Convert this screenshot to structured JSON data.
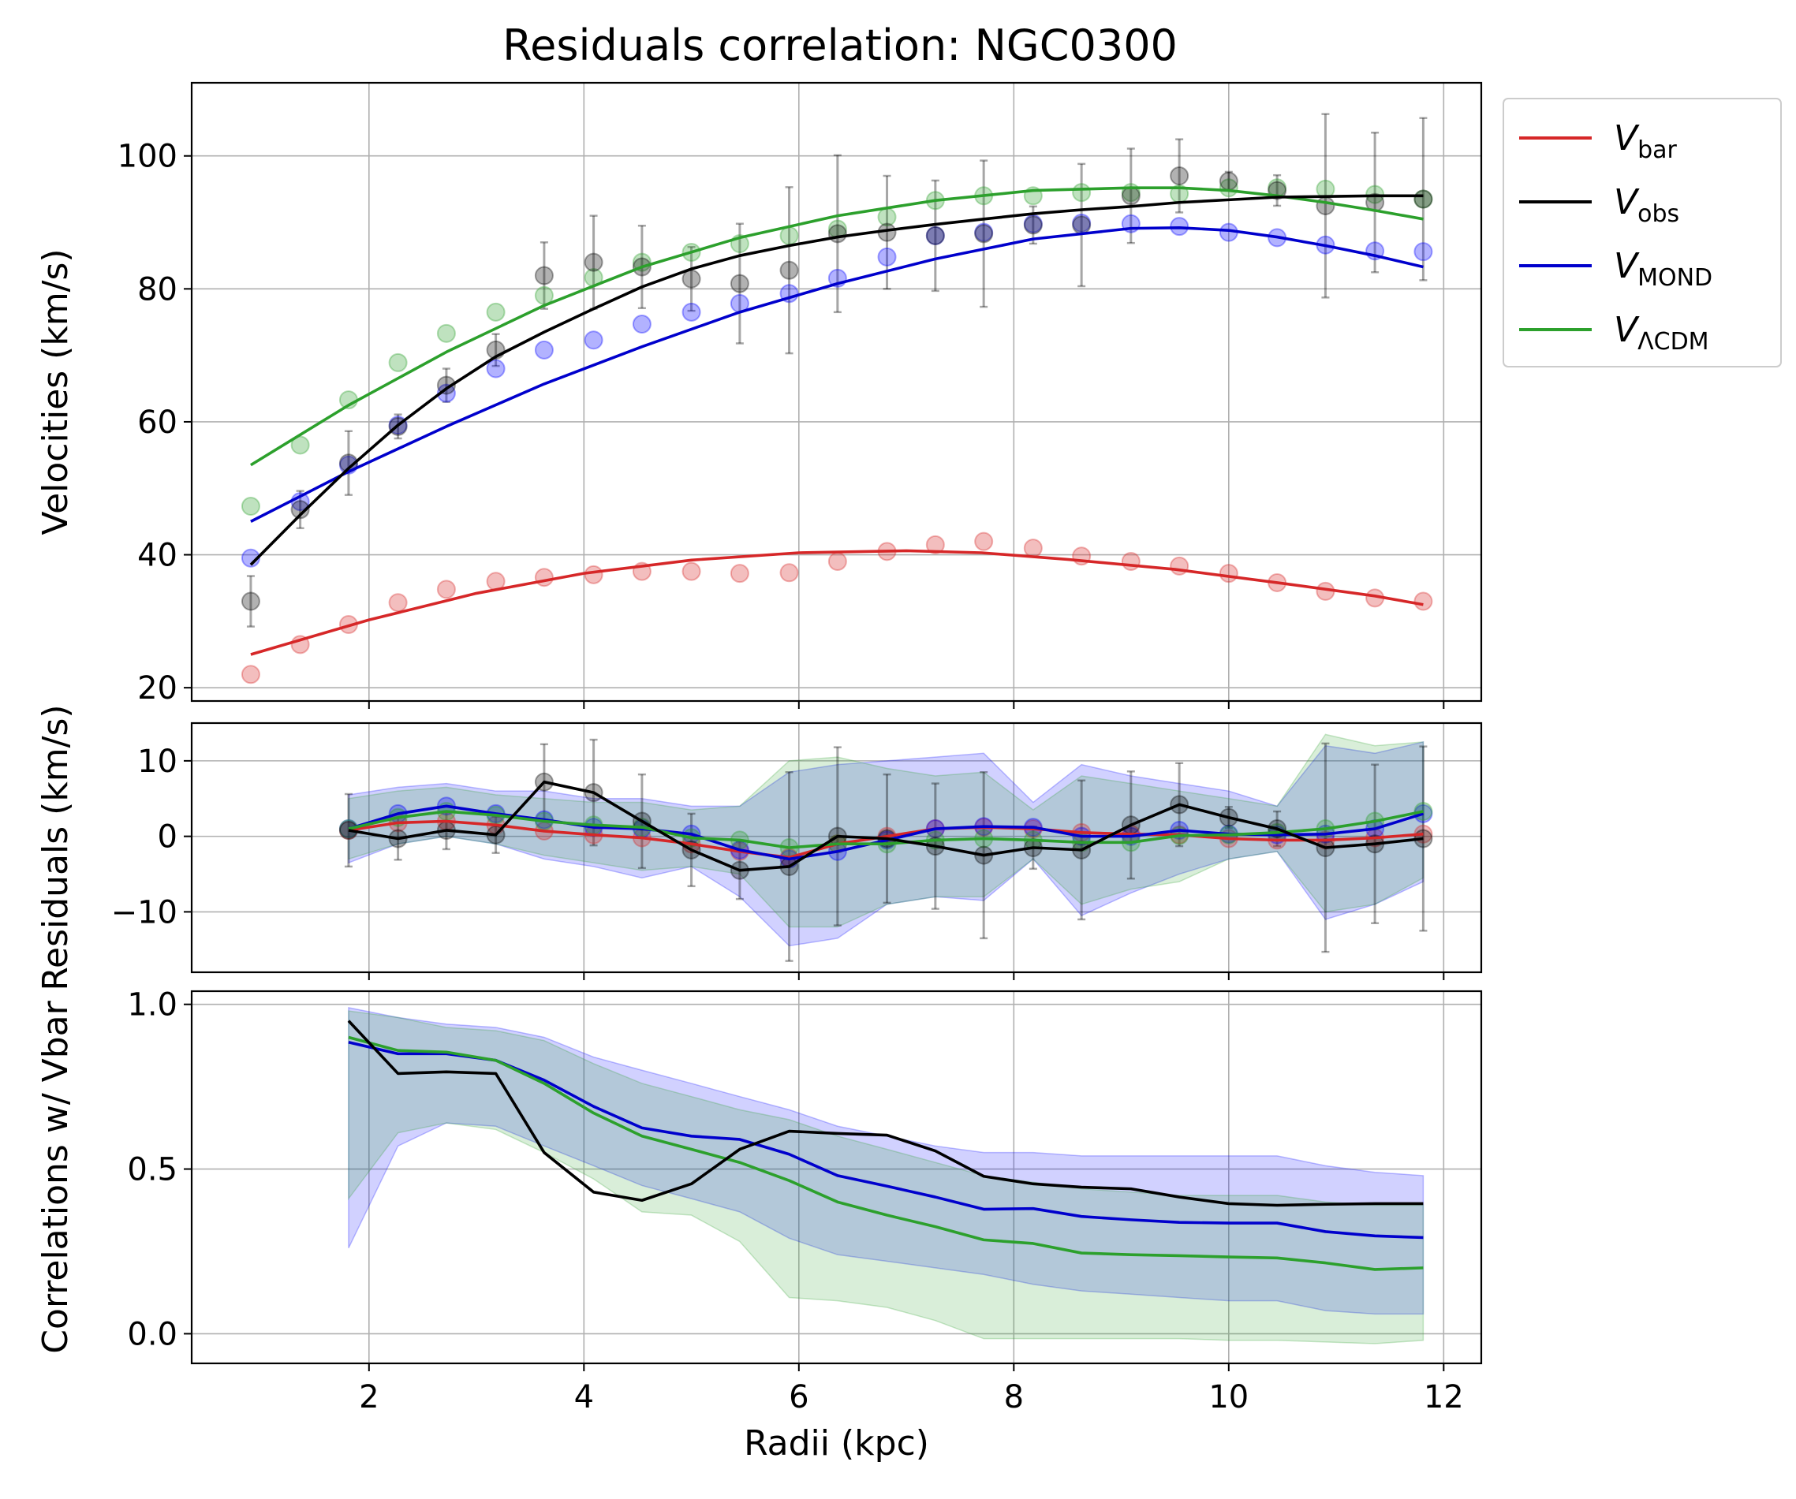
{
  "chart_data": [
    {
      "panel": "velocities",
      "type": "line",
      "title": "Residuals correlation: NGC0300",
      "xlabel": "",
      "ylabel": "Velocities (km/s)",
      "xlim": [
        0.35,
        12.35
      ],
      "ylim": [
        18,
        111
      ],
      "xticks": [
        2,
        4,
        6,
        8,
        10,
        12
      ],
      "yticks": [
        20,
        40,
        60,
        80,
        100
      ],
      "ytick_labels": [
        "20",
        "40",
        "60",
        "80",
        "100"
      ],
      "grid": true,
      "legend": {
        "placement": "outside-upper-right",
        "entries": [
          {
            "base": "V",
            "sub": "bar",
            "color": "#d62728"
          },
          {
            "base": "V",
            "sub": "obs",
            "color": "#000000"
          },
          {
            "base": "V",
            "sub": "MOND",
            "color": "#0000cc"
          },
          {
            "base": "V",
            "sub": "ΛCDM",
            "color": "#2ca02c"
          }
        ]
      },
      "x": [
        0.9,
        1.36,
        1.81,
        2.27,
        2.72,
        3.18,
        3.63,
        4.09,
        4.54,
        5.0,
        5.45,
        5.91,
        6.36,
        6.82,
        7.27,
        7.72,
        8.18,
        8.63,
        9.09,
        9.54,
        10.0,
        10.45,
        10.9,
        11.36,
        11.81
      ],
      "scatter": {
        "Vbar": [
          22,
          26.5,
          29.5,
          32.8,
          34.8,
          36,
          36.6,
          37,
          37.5,
          37.5,
          37.2,
          37.3,
          39,
          40.5,
          41.5,
          42,
          41,
          39.8,
          39,
          38.3,
          37.2,
          35.8,
          34.5,
          33.5,
          33
        ],
        "Vobs": [
          33,
          46.8,
          53.8,
          59.3,
          65.5,
          70.8,
          82,
          84,
          83.3,
          81.5,
          80.8,
          82.8,
          88.3,
          88.5,
          88,
          88.3,
          89.6,
          89.6,
          94,
          97,
          96.2,
          94.8,
          92.5,
          93,
          93.5
        ],
        "Vobs_err": [
          3.8,
          2.8,
          4.8,
          1.8,
          2.5,
          2.4,
          5,
          7,
          6.2,
          4.8,
          9,
          12.5,
          11.8,
          8.5,
          8.3,
          11,
          2.8,
          9.2,
          7.1,
          5.5,
          1.4,
          2.3,
          13.8,
          10.5,
          12.2
        ],
        "VMOND": [
          39.5,
          48,
          53.5,
          59.5,
          64.3,
          68,
          70.8,
          72.3,
          74.7,
          76.5,
          77.8,
          79.3,
          81.6,
          84.8,
          88,
          88.5,
          89.8,
          89.9,
          89.8,
          89.4,
          88.5,
          87.7,
          86.6,
          85.7,
          85.6
        ],
        "VLCDM": [
          47.3,
          56.5,
          63.3,
          68.9,
          73.3,
          76.5,
          79,
          81.7,
          84,
          85.5,
          86.8,
          88,
          89,
          90.8,
          93.3,
          94,
          94,
          94.5,
          94.5,
          94.3,
          95.2,
          95.2,
          95,
          94.2,
          93.5
        ]
      },
      "series": [
        {
          "name": "Vbar",
          "color": "#d62728",
          "x": [
            0.9,
            2,
            3,
            4,
            5,
            6,
            7,
            7.7,
            8.5,
            9.5,
            10.5,
            11.36,
            11.81
          ],
          "values": [
            25,
            30.2,
            34.2,
            37.2,
            39.2,
            40.3,
            40.6,
            40.3,
            39.3,
            37.8,
            35.7,
            33.8,
            32.5
          ]
        },
        {
          "name": "Vobs",
          "color": "#000000",
          "x": [
            0.9,
            1.36,
            1.81,
            2.27,
            2.72,
            3.18,
            3.63,
            4.09,
            4.54,
            5,
            5.45,
            5.91,
            6.36,
            6.82,
            7.27,
            7.72,
            8.18,
            8.63,
            9.09,
            9.54,
            10,
            10.45,
            10.9,
            11.36,
            11.81
          ],
          "values": [
            38.5,
            46,
            53,
            59.5,
            65,
            69.8,
            73.5,
            77,
            80.3,
            83,
            85,
            86.5,
            87.8,
            88.8,
            89.7,
            90.5,
            91.3,
            91.9,
            92.4,
            93,
            93.4,
            93.8,
            93.9,
            94,
            94
          ]
        },
        {
          "name": "VMOND",
          "color": "#0000cc",
          "x": [
            0.9,
            1.81,
            2.72,
            3.63,
            4.54,
            5.45,
            6.36,
            7.27,
            8.18,
            9.09,
            9.54,
            10,
            10.45,
            10.9,
            11.36,
            11.81
          ],
          "values": [
            45,
            52.5,
            59.3,
            65.7,
            71.3,
            76.5,
            80.8,
            84.5,
            87.5,
            89.1,
            89.2,
            88.8,
            87.8,
            86.5,
            85,
            83.3
          ]
        },
        {
          "name": "VLCDM",
          "color": "#2ca02c",
          "x": [
            0.9,
            1.81,
            2.72,
            3.63,
            4.54,
            5.45,
            6.36,
            7.27,
            8.18,
            9.09,
            9.54,
            10,
            10.45,
            10.9,
            11.36,
            11.81
          ],
          "values": [
            53.5,
            62.5,
            70.5,
            77.5,
            83.3,
            87.7,
            91,
            93.3,
            94.8,
            95.2,
            95.2,
            94.8,
            94,
            93,
            91.8,
            90.5
          ]
        }
      ]
    },
    {
      "panel": "residuals",
      "type": "line",
      "ylabel": "Residuals (km/s)",
      "xlim": [
        0.35,
        12.35
      ],
      "ylim": [
        -18,
        15
      ],
      "xticks": [
        2,
        4,
        6,
        8,
        10,
        12
      ],
      "yticks": [
        10,
        0,
        -10
      ],
      "ytick_labels": [
        "10",
        "0",
        "−10"
      ],
      "grid": true,
      "x": [
        1.81,
        2.27,
        2.72,
        3.18,
        3.63,
        4.09,
        4.54,
        5.0,
        5.45,
        5.91,
        6.36,
        6.82,
        7.27,
        7.72,
        8.18,
        8.63,
        9.09,
        9.54,
        10.0,
        10.45,
        10.9,
        11.36,
        11.81
      ],
      "series": [
        {
          "name": "Vbar",
          "color": "#d62728",
          "values": [
            0.8,
            1.8,
            2,
            1.5,
            0.7,
            0.2,
            -0.2,
            -1,
            -2,
            -2.8,
            -1,
            0,
            1,
            1.2,
            1,
            0.5,
            0.3,
            0.2,
            -0.3,
            -0.5,
            -0.5,
            -0.2,
            0.3
          ]
        },
        {
          "name": "Vobs",
          "color": "#000000",
          "values": [
            0.8,
            -0.3,
            0.8,
            0.2,
            7.2,
            5.8,
            2,
            -1.8,
            -4.5,
            -4,
            0,
            -0.3,
            -1.3,
            -2.5,
            -1.5,
            -1.8,
            1.5,
            4.2,
            2.5,
            1,
            -1.5,
            -1,
            -0.3
          ]
        },
        {
          "name": "VMOND",
          "color": "#0000cc",
          "values": [
            1,
            3,
            4,
            3,
            2.2,
            1.2,
            1,
            0.3,
            -1.8,
            -3,
            -2,
            -0.5,
            1,
            1.3,
            1.2,
            0,
            0,
            0.8,
            0.3,
            0.2,
            0.3,
            1,
            3
          ]
        },
        {
          "name": "VLCDM",
          "color": "#2ca02c",
          "values": [
            1,
            2.5,
            3.3,
            2.8,
            2,
            1.5,
            1.2,
            -0.2,
            -0.5,
            -1.5,
            -1,
            -1,
            -0.5,
            -0.3,
            -0.5,
            -0.8,
            -0.8,
            0.1,
            0.2,
            0.5,
            1,
            2,
            3.3
          ]
        }
      ],
      "bands": [
        {
          "name": "VMOND",
          "color": "#0000ff",
          "upper": [
            5.5,
            6.5,
            7,
            6,
            6,
            5,
            5,
            4,
            4,
            8.5,
            9.5,
            10,
            10.5,
            11,
            4.5,
            9.5,
            8,
            7,
            6,
            4,
            12,
            11,
            12.5
          ],
          "lower": [
            -3.5,
            -1,
            0,
            -1,
            -3,
            -4,
            -5.5,
            -4,
            -8,
            -14.5,
            -13.5,
            -9,
            -8,
            -8.5,
            -3,
            -10.5,
            -7.5,
            -5,
            -3,
            -2,
            -11,
            -9,
            -6
          ]
        },
        {
          "name": "VLCDM",
          "color": "#2ca02c",
          "upper": [
            5,
            6,
            6.5,
            5.5,
            5,
            4.5,
            4.5,
            3.5,
            4,
            10,
            10.5,
            9,
            8,
            8.5,
            3.5,
            8,
            7,
            6,
            5,
            4,
            13.5,
            12,
            12.5
          ],
          "lower": [
            -3,
            -1,
            0,
            -1,
            -2.5,
            -3.5,
            -4.5,
            -4,
            -5,
            -12,
            -12,
            -9,
            -8,
            -8,
            -3,
            -9,
            -7,
            -6,
            -3,
            -2,
            -10,
            -9,
            -5.5
          ]
        }
      ],
      "scatter": {
        "Vobs_err": [
          4.8,
          2.8,
          2.5,
          2.4,
          5,
          7,
          6.2,
          4.8,
          3.8,
          12.5,
          11.8,
          8.5,
          8.3,
          11,
          2.8,
          9.2,
          7.1,
          5.5,
          1.4,
          2.3,
          13.8,
          10.5,
          12.2
        ]
      }
    },
    {
      "panel": "correlations",
      "type": "line",
      "xlabel": "Radii (kpc)",
      "ylabel": "Correlations w/ Vbar",
      "xlim": [
        0.35,
        12.35
      ],
      "ylim": [
        -0.09,
        1.04
      ],
      "xticks": [
        2,
        4,
        6,
        8,
        10,
        12
      ],
      "xtick_labels": [
        "2",
        "4",
        "6",
        "8",
        "10",
        "12"
      ],
      "yticks": [
        0,
        0.5,
        1
      ],
      "ytick_labels": [
        "0.0",
        "0.5",
        "1.0"
      ],
      "grid": true,
      "x": [
        1.81,
        2.27,
        2.72,
        3.18,
        3.63,
        4.09,
        4.54,
        5.0,
        5.45,
        5.91,
        6.36,
        6.82,
        7.27,
        7.72,
        8.18,
        8.63,
        9.09,
        9.54,
        10.0,
        10.45,
        10.9,
        11.36,
        11.81
      ],
      "series": [
        {
          "name": "Vobs",
          "color": "#000000",
          "values": [
            0.95,
            0.79,
            0.795,
            0.79,
            0.55,
            0.43,
            0.405,
            0.455,
            0.56,
            0.615,
            0.608,
            0.603,
            0.555,
            0.478,
            0.455,
            0.445,
            0.44,
            0.415,
            0.395,
            0.39,
            0.393,
            0.395,
            0.395
          ]
        },
        {
          "name": "VMOND",
          "color": "#0000cc",
          "values": [
            0.885,
            0.85,
            0.85,
            0.83,
            0.77,
            0.69,
            0.625,
            0.6,
            0.59,
            0.545,
            0.48,
            0.448,
            0.415,
            0.378,
            0.38,
            0.356,
            0.346,
            0.338,
            0.336,
            0.336,
            0.31,
            0.297,
            0.292
          ]
        },
        {
          "name": "VLCDM",
          "color": "#2ca02c",
          "values": [
            0.9,
            0.86,
            0.855,
            0.83,
            0.76,
            0.67,
            0.6,
            0.56,
            0.52,
            0.465,
            0.4,
            0.36,
            0.325,
            0.285,
            0.274,
            0.245,
            0.24,
            0.237,
            0.233,
            0.23,
            0.215,
            0.195,
            0.2
          ]
        }
      ],
      "bands": [
        {
          "name": "VMOND",
          "color": "#0000ff",
          "upper": [
            0.99,
            0.96,
            0.94,
            0.93,
            0.9,
            0.84,
            0.8,
            0.76,
            0.72,
            0.68,
            0.63,
            0.6,
            0.57,
            0.55,
            0.55,
            0.54,
            0.54,
            0.54,
            0.54,
            0.54,
            0.51,
            0.49,
            0.48
          ],
          "lower": [
            0.26,
            0.57,
            0.64,
            0.63,
            0.57,
            0.51,
            0.45,
            0.41,
            0.37,
            0.29,
            0.24,
            0.22,
            0.2,
            0.18,
            0.15,
            0.13,
            0.12,
            0.11,
            0.1,
            0.1,
            0.07,
            0.06,
            0.06
          ]
        },
        {
          "name": "VLCDM",
          "color": "#2ca02c",
          "upper": [
            0.98,
            0.96,
            0.93,
            0.92,
            0.89,
            0.82,
            0.76,
            0.72,
            0.68,
            0.65,
            0.6,
            0.56,
            0.52,
            0.48,
            0.46,
            0.44,
            0.43,
            0.42,
            0.42,
            0.42,
            0.4,
            0.39,
            0.39
          ],
          "lower": [
            0.41,
            0.61,
            0.64,
            0.62,
            0.55,
            0.47,
            0.37,
            0.36,
            0.28,
            0.11,
            0.1,
            0.08,
            0.04,
            -0.015,
            -0.015,
            -0.015,
            -0.015,
            -0.015,
            -0.02,
            -0.02,
            -0.025,
            -0.03,
            -0.02
          ]
        }
      ]
    }
  ]
}
